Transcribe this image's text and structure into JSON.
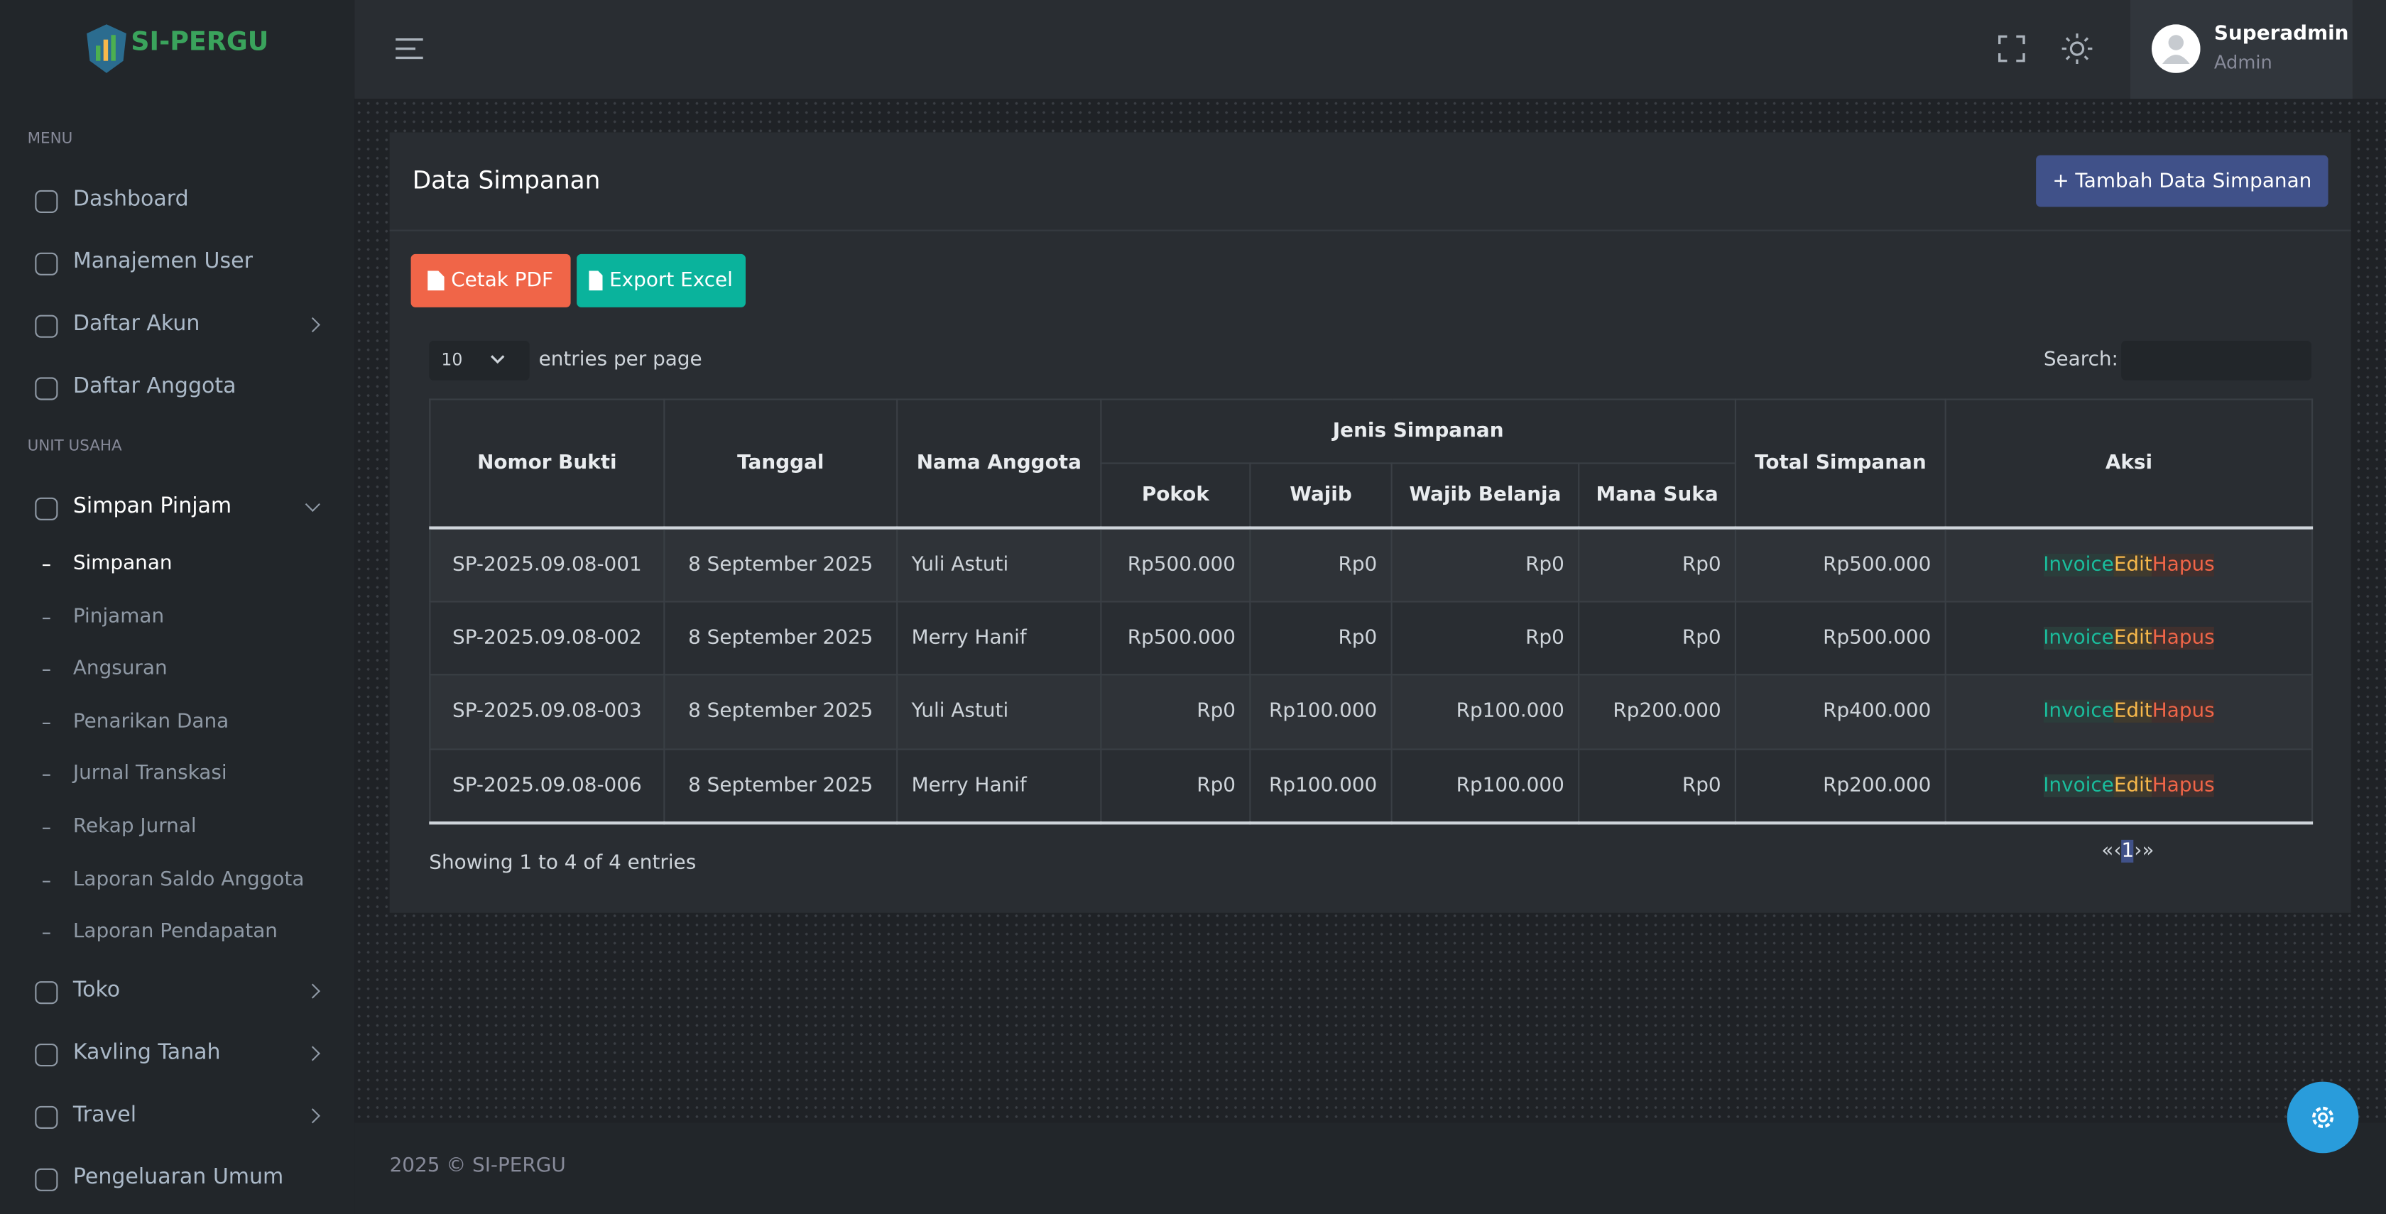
{
  "sidebar": {
    "logo": "SI-PERGU",
    "menu_label": "MENU",
    "menu": [
      "Dashboard",
      "Manajemen User",
      "Daftar Akun",
      "Daftar Anggota"
    ],
    "unit_label": "UNIT USAHA",
    "active_group": "Simpan Pinjam",
    "submenu": [
      "Simpanan",
      "Pinjaman",
      "Angsuran",
      "Penarikan Dana",
      "Jurnal Transkasi",
      "Rekap Jurnal",
      "Laporan Saldo Anggota",
      "Laporan Pendapatan"
    ],
    "more": [
      "Toko",
      "Kavling Tanah",
      "Travel",
      "Pengeluaran Umum"
    ]
  },
  "header": {
    "user": {
      "name": "Superadmin",
      "role": "Admin"
    }
  },
  "card": {
    "title": "Data Simpanan",
    "add_button": "Tambah Data Simpanan",
    "buttons": [
      "Cetak PDF",
      "Export Excel"
    ],
    "length": "10",
    "length_text": "entries per page",
    "search_label": "Search:"
  },
  "table": {
    "columns": [
      "Nomor Bukti",
      "Tanggal",
      "Nama Anggota",
      "Total Simpanan",
      "Aksi"
    ],
    "group": "Jenis Simpanan",
    "subcolumns": [
      "Pokok",
      "Wajib",
      "Wajib Belanja",
      "Mana Suka"
    ],
    "actions": [
      "Invoice",
      "Edit",
      "Hapus"
    ],
    "rows": [
      [
        "SP-2025.09.08-001",
        "8 September 2025",
        "Yuli Astuti",
        "Rp500.000",
        "Rp0",
        "Rp0",
        "Rp0",
        "Rp500.000"
      ],
      [
        "SP-2025.09.08-002",
        "8 September 2025",
        "Merry Hanif",
        "Rp500.000",
        "Rp0",
        "Rp0",
        "Rp0",
        "Rp500.000"
      ],
      [
        "SP-2025.09.08-003",
        "8 September 2025",
        "Yuli Astuti",
        "Rp0",
        "Rp100.000",
        "Rp100.000",
        "Rp200.000",
        "Rp400.000"
      ],
      [
        "SP-2025.09.08-006",
        "8 September 2025",
        "Merry Hanif",
        "Rp0",
        "Rp100.000",
        "Rp100.000",
        "Rp0",
        "Rp200.000"
      ]
    ]
  },
  "info": "Showing 1 to 4 of 4 entries",
  "pagination": [
    "«",
    "‹",
    "1",
    "›",
    "»"
  ],
  "footer": "2025 © SI-PERGU"
}
